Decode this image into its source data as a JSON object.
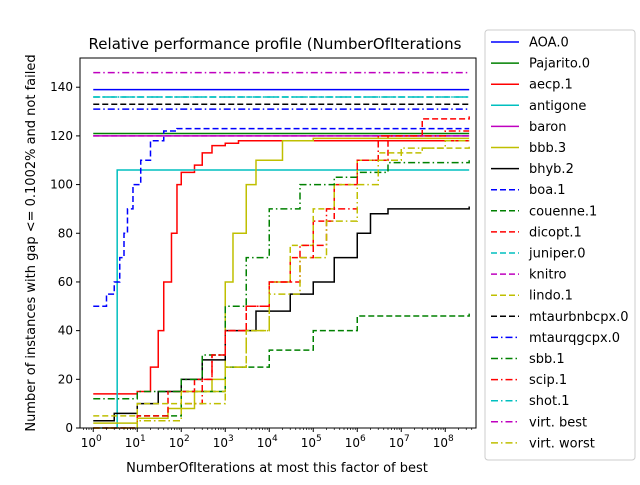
{
  "chart_data": {
    "type": "line",
    "title": "Relative performance profile (NumberOfIterations",
    "xlabel": "NumberOfIterations at most this factor of best",
    "ylabel": "Number of instances with gap <= 0.1002% and not failed",
    "x_scale": "log",
    "xlim": [
      0.5,
      500000000
    ],
    "ylim": [
      0,
      152
    ],
    "x_ticks": [
      {
        "value": 1,
        "label": "10",
        "exp": "0"
      },
      {
        "value": 10,
        "label": "10",
        "exp": "1"
      },
      {
        "value": 100,
        "label": "10",
        "exp": "2"
      },
      {
        "value": 1000,
        "label": "10",
        "exp": "3"
      },
      {
        "value": 10000,
        "label": "10",
        "exp": "4"
      },
      {
        "value": 100000,
        "label": "10",
        "exp": "5"
      },
      {
        "value": 1000000,
        "label": "10",
        "exp": "6"
      },
      {
        "value": 10000000,
        "label": "10",
        "exp": "7"
      },
      {
        "value": 100000000,
        "label": "10",
        "exp": "8"
      }
    ],
    "y_ticks": [
      0,
      20,
      40,
      60,
      80,
      100,
      120,
      140
    ],
    "grid": false,
    "legend_position": "outside-right",
    "series": [
      {
        "name": "AOA.0",
        "color": "#0000ff",
        "dash": "solid",
        "points": [
          [
            1,
            139
          ],
          [
            350000000,
            139
          ]
        ]
      },
      {
        "name": "Pajarito.0",
        "color": "#008000",
        "dash": "solid",
        "points": [
          [
            1,
            121
          ],
          [
            350000000,
            121
          ]
        ]
      },
      {
        "name": "aecp.1",
        "color": "#ff0000",
        "dash": "solid",
        "points": [
          [
            1,
            14
          ],
          [
            10,
            15
          ],
          [
            20,
            25
          ],
          [
            30,
            40
          ],
          [
            40,
            60
          ],
          [
            60,
            80
          ],
          [
            80,
            100
          ],
          [
            100,
            105
          ],
          [
            200,
            108
          ],
          [
            300,
            113
          ],
          [
            500,
            116
          ],
          [
            1000,
            117
          ],
          [
            2000,
            118
          ],
          [
            350000000,
            118
          ]
        ]
      },
      {
        "name": "antigone",
        "color": "#00bfbf",
        "dash": "solid",
        "points": [
          [
            1,
            0
          ],
          [
            3.5,
            0
          ],
          [
            3.5,
            106
          ],
          [
            350000000,
            106
          ]
        ]
      },
      {
        "name": "baron",
        "color": "#bf00bf",
        "dash": "solid",
        "points": [
          [
            1,
            120
          ],
          [
            350000000,
            120
          ]
        ]
      },
      {
        "name": "bbb.3",
        "color": "#bfbf00",
        "dash": "solid",
        "points": [
          [
            1,
            2
          ],
          [
            10,
            4
          ],
          [
            50,
            8
          ],
          [
            200,
            15
          ],
          [
            500,
            20
          ],
          [
            1000,
            60
          ],
          [
            1500,
            80
          ],
          [
            3000,
            100
          ],
          [
            5000,
            110
          ],
          [
            20000,
            118
          ],
          [
            100000,
            119
          ],
          [
            350000000,
            119
          ]
        ]
      },
      {
        "name": "bhyb.2",
        "color": "#000000",
        "dash": "solid",
        "points": [
          [
            1,
            3
          ],
          [
            3,
            6
          ],
          [
            10,
            10
          ],
          [
            30,
            15
          ],
          [
            100,
            20
          ],
          [
            300,
            28
          ],
          [
            1000,
            40
          ],
          [
            5000,
            48
          ],
          [
            30000,
            55
          ],
          [
            100000,
            60
          ],
          [
            300000,
            70
          ],
          [
            1000000,
            80
          ],
          [
            2000000,
            88
          ],
          [
            5000000,
            90
          ],
          [
            350000000,
            91
          ]
        ]
      },
      {
        "name": "boa.1",
        "color": "#0000ff",
        "dash": "dashed",
        "points": [
          [
            1,
            50
          ],
          [
            2,
            55
          ],
          [
            3,
            60
          ],
          [
            4,
            70
          ],
          [
            5,
            80
          ],
          [
            6,
            90
          ],
          [
            8,
            100
          ],
          [
            12,
            110
          ],
          [
            20,
            118
          ],
          [
            40,
            122
          ],
          [
            80,
            123
          ],
          [
            350000000,
            123
          ]
        ]
      },
      {
        "name": "couenne.1",
        "color": "#008000",
        "dash": "dashed",
        "points": [
          [
            1,
            0
          ],
          [
            10,
            5
          ],
          [
            100,
            15
          ],
          [
            1000,
            25
          ],
          [
            10000,
            32
          ],
          [
            100000,
            40
          ],
          [
            1000000,
            46
          ],
          [
            350000000,
            47
          ]
        ]
      },
      {
        "name": "dicopt.1",
        "color": "#ff0000",
        "dash": "dashed",
        "points": [
          [
            1,
            0
          ],
          [
            10,
            5
          ],
          [
            50,
            15
          ],
          [
            200,
            20
          ],
          [
            500,
            30
          ],
          [
            1000,
            40
          ],
          [
            3000,
            50
          ],
          [
            10000,
            60
          ],
          [
            30000,
            70
          ],
          [
            100000,
            85
          ],
          [
            300000,
            100
          ],
          [
            1000000,
            110
          ],
          [
            5000000,
            120
          ],
          [
            30000000,
            127
          ],
          [
            350000000,
            128
          ]
        ]
      },
      {
        "name": "juniper.0",
        "color": "#00bfbf",
        "dash": "dashed",
        "points": [
          [
            1,
            136
          ],
          [
            350000000,
            136
          ]
        ]
      },
      {
        "name": "knitro",
        "color": "#bf00bf",
        "dash": "dashed",
        "points": [
          [
            1,
            120
          ],
          [
            350000000,
            120
          ]
        ]
      },
      {
        "name": "lindo.1",
        "color": "#bfbf00",
        "dash": "dashed",
        "points": [
          [
            1,
            5
          ],
          [
            10,
            10
          ],
          [
            100,
            15
          ],
          [
            1000,
            25
          ],
          [
            3000,
            40
          ],
          [
            10000,
            60
          ],
          [
            30000,
            75
          ],
          [
            100000,
            90
          ],
          [
            300000,
            100
          ],
          [
            1000000,
            110
          ],
          [
            3000000,
            113
          ],
          [
            30000000,
            115
          ],
          [
            350000000,
            116
          ]
        ]
      },
      {
        "name": "mtaurbnbcpx.0",
        "color": "#000000",
        "dash": "dashed",
        "points": [
          [
            1,
            133
          ],
          [
            350000000,
            133
          ]
        ]
      },
      {
        "name": "mtaurqgcpx.0",
        "color": "#0000ff",
        "dash": "dashdot",
        "points": [
          [
            1,
            131
          ],
          [
            350000000,
            131
          ]
        ]
      },
      {
        "name": "sbb.1",
        "color": "#008000",
        "dash": "dashdot",
        "points": [
          [
            1,
            12
          ],
          [
            10,
            15
          ],
          [
            100,
            20
          ],
          [
            300,
            30
          ],
          [
            1000,
            50
          ],
          [
            3000,
            70
          ],
          [
            10000,
            90
          ],
          [
            50000,
            100
          ],
          [
            300000,
            103
          ],
          [
            1000000,
            105
          ],
          [
            5000000,
            109
          ],
          [
            350000000,
            110
          ]
        ]
      },
      {
        "name": "scip.1",
        "color": "#ff0000",
        "dash": "dashdot",
        "points": [
          [
            1,
            0
          ],
          [
            10,
            3
          ],
          [
            100,
            10
          ],
          [
            300,
            20
          ],
          [
            500,
            30
          ],
          [
            1000,
            40
          ],
          [
            3000,
            50
          ],
          [
            10000,
            60
          ],
          [
            50000,
            75
          ],
          [
            200000,
            90
          ],
          [
            1000000,
            110
          ],
          [
            3000000,
            120
          ],
          [
            100000000,
            122
          ],
          [
            350000000,
            122
          ]
        ]
      },
      {
        "name": "shot.1",
        "color": "#00bfbf",
        "dash": "dashdot",
        "points": [
          [
            1,
            136
          ],
          [
            350000000,
            136
          ]
        ]
      },
      {
        "name": "virt. best",
        "color": "#bf00bf",
        "dash": "dashdot",
        "points": [
          [
            1,
            146
          ],
          [
            350000000,
            146
          ]
        ]
      },
      {
        "name": "virt. worst",
        "color": "#bfbf00",
        "dash": "dashdot",
        "points": [
          [
            1,
            0
          ],
          [
            10,
            3
          ],
          [
            100,
            10
          ],
          [
            1000,
            25
          ],
          [
            3000,
            40
          ],
          [
            10000,
            55
          ],
          [
            50000,
            70
          ],
          [
            200000,
            85
          ],
          [
            1000000,
            100
          ],
          [
            3000000,
            110
          ],
          [
            10000000,
            115
          ],
          [
            100000000,
            118
          ],
          [
            350000000,
            118
          ]
        ]
      }
    ]
  }
}
